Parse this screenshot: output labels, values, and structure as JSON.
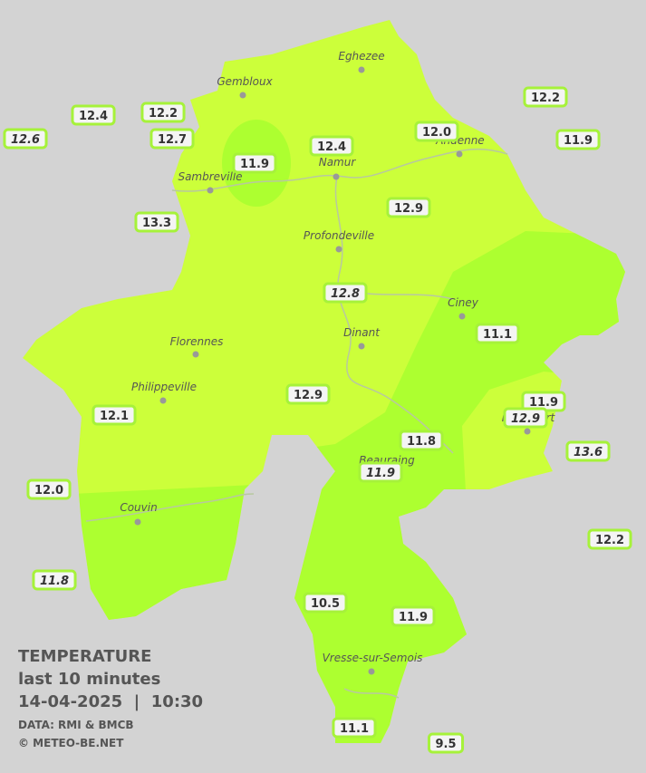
{
  "cities": [
    {
      "name": "Eghezee"
    },
    {
      "name": "Gembloux"
    },
    {
      "name": "Andenne"
    },
    {
      "name": "Namur"
    },
    {
      "name": "Sambreville"
    },
    {
      "name": "Profondeville"
    },
    {
      "name": "Ciney"
    },
    {
      "name": "Dinant"
    },
    {
      "name": "Florennes"
    },
    {
      "name": "Philippeville"
    },
    {
      "name": "Beauraing"
    },
    {
      "name": "Rochefort"
    },
    {
      "name": "Couvin"
    },
    {
      "name": "Vresse-sur-Semois"
    }
  ],
  "stations": [
    {
      "value": "12.4"
    },
    {
      "value": "12.2"
    },
    {
      "value": "12.6",
      "italic": true
    },
    {
      "value": "12.7"
    },
    {
      "value": "11.9"
    },
    {
      "value": "12.4"
    },
    {
      "value": "12.0"
    },
    {
      "value": "12.2"
    },
    {
      "value": "11.9"
    },
    {
      "value": "13.3"
    },
    {
      "value": "12.9"
    },
    {
      "value": "12.8",
      "italic": true
    },
    {
      "value": "11.1"
    },
    {
      "value": "12.9"
    },
    {
      "value": "12.1"
    },
    {
      "value": "11.9"
    },
    {
      "value": "12.9",
      "italic": true
    },
    {
      "value": "11.8"
    },
    {
      "value": "11.9",
      "italic": true
    },
    {
      "value": "13.6",
      "italic": true
    },
    {
      "value": "12.0"
    },
    {
      "value": "12.2"
    },
    {
      "value": "11.8",
      "italic": true
    },
    {
      "value": "10.5"
    },
    {
      "value": "11.9"
    },
    {
      "value": "11.1"
    },
    {
      "value": "9.5"
    }
  ],
  "legend": {
    "title": "TEMPERATURE",
    "period": "last 10 minutes",
    "datetime": "14-04-2025  |  10:30",
    "source": "DATA: RMI & BMCB",
    "copyright": "© METEO-BE.NET"
  }
}
